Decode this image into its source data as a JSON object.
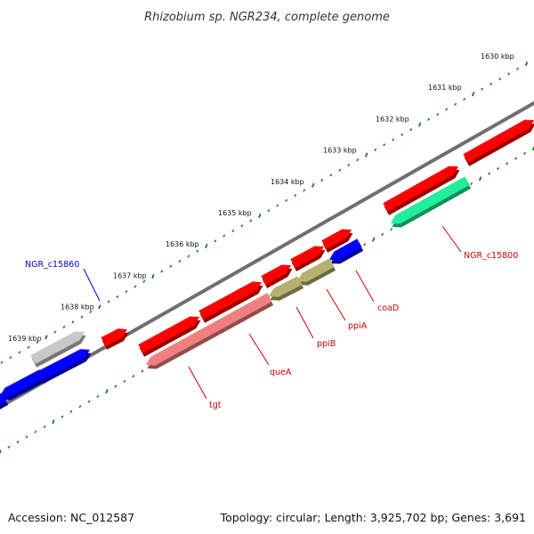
{
  "title": "Rhizobium sp. NGR234, complete genome",
  "colors": {
    "backbone": "#6f6f6f",
    "ticks": "#1a7a1a",
    "label_red": "#cc0000",
    "label_blue": "#0000cc"
  },
  "scale": {
    "unit": "kbp",
    "labels": [
      "1630 kbp",
      "1631 kbp",
      "1632 kbp",
      "1633 kbp",
      "1634 kbp",
      "1635 kbp",
      "1636 kbp",
      "1637 kbp",
      "1638 kbp",
      "1639 kbp"
    ]
  },
  "genes": [
    {
      "id": "fwd-red-1",
      "strand": "forward",
      "color": "#ff0000"
    },
    {
      "id": "fwd-red-2",
      "strand": "forward",
      "color": "#ff0000"
    },
    {
      "id": "fwd-red-3",
      "strand": "forward",
      "color": "#ff0000"
    },
    {
      "id": "fwd-red-4",
      "strand": "forward",
      "color": "#ff0000"
    },
    {
      "id": "fwd-red-5",
      "strand": "forward",
      "color": "#ff0000"
    },
    {
      "id": "fwd-red-6",
      "strand": "forward",
      "color": "#ff0000"
    },
    {
      "id": "fwd-red-7",
      "strand": "forward",
      "color": "#ff0000"
    },
    {
      "id": "fwd-red-8",
      "strand": "forward",
      "color": "#ff0000"
    },
    {
      "id": "fwd-grey",
      "strand": "forward",
      "color": "#c8c8c8"
    },
    {
      "id": "fwd-blue",
      "strand": "forward",
      "color": "#0000ff"
    },
    {
      "id": "rev-green",
      "strand": "reverse",
      "color": "#22ee99"
    },
    {
      "id": "rev-blue-coaD",
      "strand": "reverse",
      "color": "#0000ff"
    },
    {
      "id": "rev-olive-1",
      "strand": "reverse",
      "color": "#b8b070"
    },
    {
      "id": "rev-olive-2",
      "strand": "reverse",
      "color": "#b8b070"
    },
    {
      "id": "rev-pink",
      "strand": "reverse",
      "color": "#f08080"
    },
    {
      "id": "rev-blue-1",
      "strand": "reverse",
      "color": "#0000ff"
    },
    {
      "id": "rev-blue-2",
      "strand": "reverse",
      "color": "#0000ff"
    }
  ],
  "gene_labels": [
    {
      "text": "NGR_c15860",
      "color": "#0000cc"
    },
    {
      "text": "NGR_c15800",
      "color": "#cc0000"
    },
    {
      "text": "coaD",
      "color": "#cc0000"
    },
    {
      "text": "ppiA",
      "color": "#cc0000"
    },
    {
      "text": "ppiB",
      "color": "#cc0000"
    },
    {
      "text": "queA",
      "color": "#cc0000"
    },
    {
      "text": "tgt",
      "color": "#cc0000"
    }
  ],
  "footer": {
    "accession": "Accession: NC_012587",
    "summary": "Topology: circular; Length: 3,925,702 bp; Genes: 3,691"
  }
}
